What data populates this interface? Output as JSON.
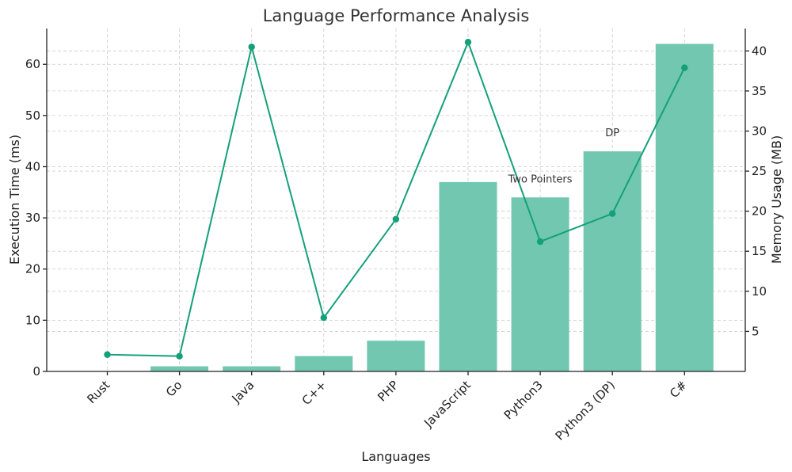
{
  "chart_data": {
    "type": "bar+line",
    "title": "Language Performance Analysis",
    "xlabel": "Languages",
    "categories": [
      "Rust",
      "Go",
      "Java",
      "C++",
      "PHP",
      "JavaScript",
      "Python3",
      "Python3 (DP)",
      "C#"
    ],
    "bar_series": {
      "ylabel": "Execution Time (ms)",
      "values": [
        0,
        1,
        1,
        3,
        6,
        37,
        34,
        43,
        64
      ],
      "ylim": [
        0,
        67
      ],
      "ticks": [
        0,
        10,
        20,
        30,
        40,
        50,
        60
      ],
      "color": "#72c7b0"
    },
    "line_series": {
      "ylabel": "Memory Usage (MB)",
      "values": [
        2.1,
        1.9,
        40.5,
        6.7,
        19.0,
        41.1,
        16.2,
        19.7,
        37.9
      ],
      "ylim": [
        0,
        42.8
      ],
      "ticks": [
        5,
        10,
        15,
        20,
        25,
        30,
        35,
        40
      ],
      "color": "#14a07a"
    },
    "annotations": [
      {
        "category": "Python3",
        "text": "Two Pointers"
      },
      {
        "category": "Python3 (DP)",
        "text": "DP"
      }
    ],
    "grid": true
  }
}
